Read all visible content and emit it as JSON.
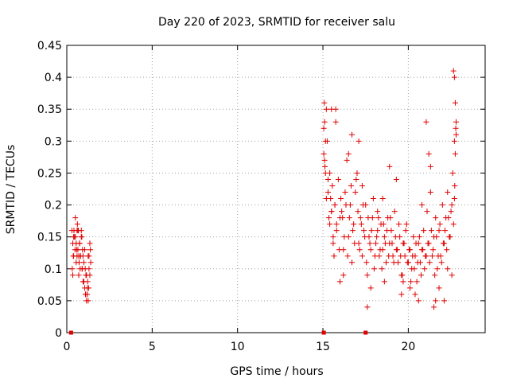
{
  "chart_data": {
    "type": "scatter",
    "title": "Day 220 of 2023, SRMTID for receiver salu",
    "xlabel": "GPS time / hours",
    "ylabel": "SRMTID / TECUs",
    "xlim": [
      0,
      24.5
    ],
    "ylim": [
      0,
      0.45
    ],
    "xticks": [
      0,
      5,
      10,
      15,
      20
    ],
    "xtick_labels": [
      "0",
      "5",
      "10",
      "15",
      "20"
    ],
    "yticks": [
      0,
      0.05,
      0.1,
      0.15,
      0.2,
      0.25,
      0.3,
      0.35,
      0.4,
      0.45
    ],
    "ytick_labels": [
      "0",
      "0.05",
      "0.1",
      "0.15",
      "0.2",
      "0.25",
      "0.3",
      "0.35",
      "0.4",
      "0.45"
    ],
    "grid": true,
    "marker": "+",
    "color": "#e00000",
    "zero_markers": [
      [
        0.25,
        0.0
      ],
      [
        15.05,
        0.0
      ],
      [
        17.5,
        0.0
      ]
    ],
    "series": [
      {
        "name": "SRMTID",
        "x": [
          0.3,
          0.35,
          0.4,
          0.45,
          0.5,
          0.55,
          0.6,
          0.65,
          0.7,
          0.75,
          0.8,
          0.85,
          0.9,
          0.95,
          1.0,
          1.05,
          1.1,
          1.15,
          1.2,
          1.25,
          1.3,
          1.35,
          1.4,
          0.32,
          0.38,
          0.42,
          0.5,
          0.58,
          0.62,
          0.7,
          0.78,
          0.85,
          0.92,
          1.0,
          1.08,
          1.15,
          1.22,
          1.3,
          1.38,
          0.35,
          0.48,
          0.55,
          0.65,
          0.72,
          0.8,
          0.88,
          0.95,
          1.05,
          1.12,
          1.2,
          1.28,
          1.35,
          0.4,
          0.6,
          0.75,
          0.9,
          1.1,
          1.25,
          0.68,
          15.05,
          15.1,
          15.15,
          15.2,
          15.25,
          15.3,
          15.35,
          15.4,
          15.45,
          15.5,
          15.55,
          15.6,
          15.65,
          15.7,
          15.75,
          15.8,
          15.9,
          16.0,
          16.1,
          16.2,
          16.3,
          16.4,
          16.5,
          16.6,
          16.7,
          16.8,
          16.9,
          17.0,
          17.1,
          17.2,
          17.3,
          17.4,
          17.5,
          17.6,
          17.7,
          17.8,
          17.9,
          18.0,
          18.1,
          18.2,
          18.3,
          18.4,
          18.5,
          18.6,
          18.7,
          18.8,
          18.9,
          19.0,
          19.1,
          19.2,
          19.3,
          19.4,
          19.5,
          19.6,
          19.7,
          19.8,
          19.9,
          20.0,
          20.1,
          20.2,
          20.3,
          20.4,
          20.5,
          20.6,
          20.7,
          20.8,
          20.9,
          21.0,
          21.1,
          21.2,
          21.3,
          21.4,
          21.5,
          21.6,
          21.7,
          21.8,
          21.9,
          22.0,
          22.1,
          22.2,
          22.3,
          22.4,
          22.5,
          22.6,
          22.7,
          22.75,
          22.8,
          15.1,
          15.2,
          15.3,
          15.4,
          15.5,
          15.6,
          15.7,
          15.8,
          15.95,
          16.05,
          16.15,
          16.25,
          16.35,
          16.45,
          16.55,
          16.65,
          16.75,
          16.85,
          16.95,
          17.05,
          17.15,
          17.25,
          17.35,
          17.45,
          17.55,
          17.65,
          17.75,
          17.85,
          17.95,
          18.05,
          18.15,
          18.25,
          18.35,
          18.45,
          18.55,
          18.65,
          18.75,
          18.85,
          18.95,
          19.05,
          19.15,
          19.25,
          19.35,
          19.45,
          19.55,
          19.65,
          19.75,
          19.85,
          19.95,
          20.05,
          20.15,
          20.25,
          20.35,
          20.45,
          20.55,
          20.65,
          20.75,
          20.85,
          20.95,
          21.05,
          21.15,
          21.25,
          21.35,
          21.45,
          21.55,
          21.65,
          21.75,
          21.85,
          21.95,
          22.05,
          22.15,
          22.25,
          22.35,
          22.45,
          22.55,
          22.65,
          22.72,
          15.05,
          15.08,
          15.12,
          15.15,
          15.5,
          15.75,
          16.5,
          16.7,
          17.1,
          17.3,
          17.6,
          18.2,
          18.5,
          18.9,
          19.3,
          19.7,
          20.1,
          20.4,
          20.8,
          21.05,
          21.2,
          21.3,
          21.5,
          21.8,
          22.1,
          22.3,
          22.55,
          22.65,
          22.7,
          22.75,
          22.8,
          22.78,
          22.7,
          16.0,
          16.2,
          17.8,
          18.6,
          19.6,
          20.6,
          21.6
        ],
        "y": [
          0.16,
          0.14,
          0.12,
          0.15,
          0.18,
          0.11,
          0.16,
          0.13,
          0.09,
          0.14,
          0.12,
          0.15,
          0.1,
          0.08,
          0.11,
          0.13,
          0.06,
          0.09,
          0.07,
          0.12,
          0.1,
          0.14,
          0.11,
          0.1,
          0.12,
          0.16,
          0.15,
          0.13,
          0.17,
          0.12,
          0.1,
          0.16,
          0.13,
          0.08,
          0.1,
          0.05,
          0.08,
          0.12,
          0.13,
          0.09,
          0.13,
          0.14,
          0.16,
          0.11,
          0.12,
          0.15,
          0.12,
          0.07,
          0.09,
          0.06,
          0.07,
          0.09,
          0.15,
          0.12,
          0.14,
          0.1,
          0.06,
          0.05,
          0.16,
          0.28,
          0.33,
          0.25,
          0.35,
          0.3,
          0.22,
          0.18,
          0.25,
          0.21,
          0.19,
          0.23,
          0.15,
          0.12,
          0.2,
          0.35,
          0.17,
          0.24,
          0.18,
          0.19,
          0.13,
          0.22,
          0.27,
          0.15,
          0.2,
          0.11,
          0.17,
          0.22,
          0.25,
          0.14,
          0.18,
          0.12,
          0.16,
          0.2,
          0.09,
          0.15,
          0.13,
          0.18,
          0.1,
          0.14,
          0.16,
          0.12,
          0.17,
          0.13,
          0.15,
          0.11,
          0.18,
          0.14,
          0.16,
          0.12,
          0.19,
          0.13,
          0.11,
          0.15,
          0.09,
          0.14,
          0.12,
          0.17,
          0.11,
          0.13,
          0.1,
          0.15,
          0.12,
          0.08,
          0.14,
          0.11,
          0.13,
          0.16,
          0.12,
          0.19,
          0.14,
          0.22,
          0.12,
          0.15,
          0.18,
          0.1,
          0.16,
          0.12,
          0.2,
          0.14,
          0.18,
          0.22,
          0.15,
          0.19,
          0.25,
          0.21,
          0.28,
          0.31,
          0.27,
          0.21,
          0.24,
          0.17,
          0.19,
          0.14,
          0.2,
          0.16,
          0.13,
          0.21,
          0.18,
          0.15,
          0.2,
          0.12,
          0.18,
          0.23,
          0.16,
          0.14,
          0.24,
          0.19,
          0.13,
          0.17,
          0.2,
          0.15,
          0.11,
          0.18,
          0.14,
          0.16,
          0.21,
          0.12,
          0.15,
          0.18,
          0.13,
          0.1,
          0.17,
          0.14,
          0.16,
          0.12,
          0.18,
          0.14,
          0.11,
          0.15,
          0.13,
          0.17,
          0.12,
          0.09,
          0.14,
          0.16,
          0.11,
          0.13,
          0.08,
          0.12,
          0.1,
          0.14,
          0.11,
          0.15,
          0.09,
          0.13,
          0.1,
          0.12,
          0.14,
          0.11,
          0.16,
          0.13,
          0.09,
          0.15,
          0.12,
          0.17,
          0.11,
          0.14,
          0.16,
          0.13,
          0.18,
          0.15,
          0.2,
          0.17,
          0.23,
          0.32,
          0.36,
          0.26,
          0.3,
          0.35,
          0.33,
          0.28,
          0.31,
          0.3,
          0.23,
          0.04,
          0.19,
          0.21,
          0.26,
          0.24,
          0.08,
          0.07,
          0.06,
          0.2,
          0.33,
          0.28,
          0.26,
          0.04,
          0.07,
          0.05,
          0.1,
          0.09,
          0.41,
          0.4,
          0.36,
          0.33,
          0.32,
          0.3,
          0.08,
          0.09,
          0.07,
          0.08,
          0.06,
          0.05,
          0.05
        ]
      }
    ]
  }
}
